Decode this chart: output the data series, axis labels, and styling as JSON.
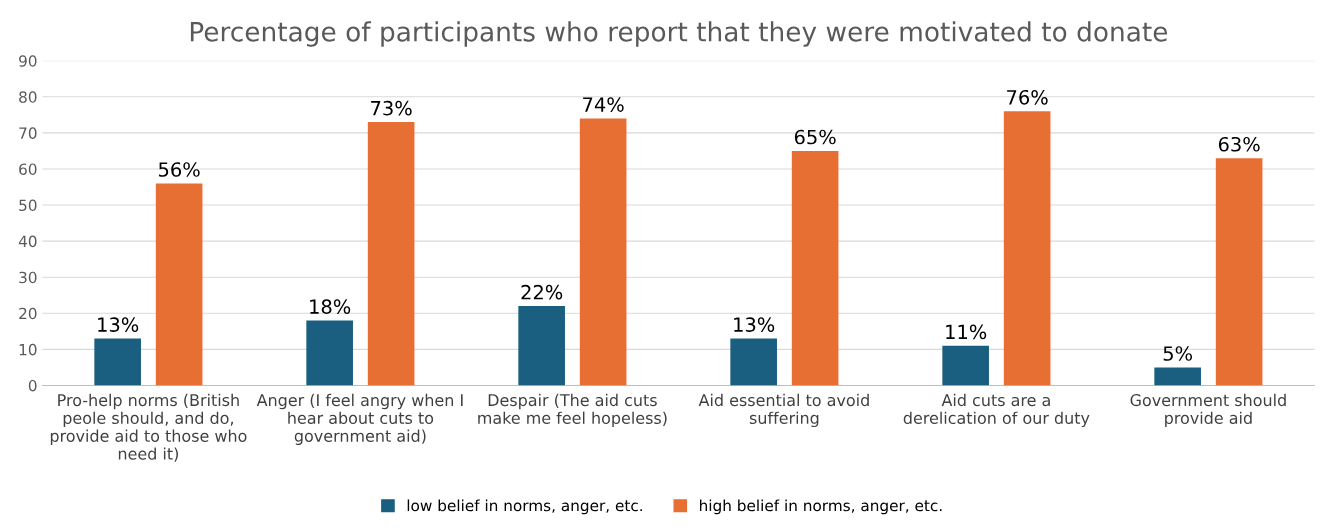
{
  "chart_data": {
    "type": "bar",
    "title": "Percentage of participants who report that they were motivated to donate",
    "categories": [
      "Pro-help norms (British\npeole should, and do,\nprovide aid to those who\nneed it)",
      "Anger (I feel angry when I\nhear about cuts to\ngovernment aid)",
      "Despair (The aid cuts\nmake me feel hopeless)",
      "Aid essential to avoid\nsuffering",
      "Aid cuts are a\nderelication of our duty",
      "Government should\nprovide aid"
    ],
    "series": [
      {
        "name": "low belief in norms, anger, etc.",
        "color": "#1a5f7f",
        "values": [
          13,
          18,
          22,
          13,
          11,
          5
        ],
        "value_labels": [
          "13%",
          "18%",
          "22%",
          "13%",
          "11%",
          "5%"
        ]
      },
      {
        "name": "high belief in norms, anger, etc.",
        "color": "#e86f33",
        "values": [
          56,
          73,
          74,
          65,
          76,
          63
        ],
        "value_labels": [
          "56%",
          "73%",
          "74%",
          "65%",
          "76%",
          "63%"
        ]
      }
    ],
    "ylim": [
      0,
      90
    ],
    "yticks": [
      0,
      10,
      20,
      30,
      40,
      50,
      60,
      70,
      80,
      90
    ],
    "grid": "y",
    "legend": "bottom"
  }
}
